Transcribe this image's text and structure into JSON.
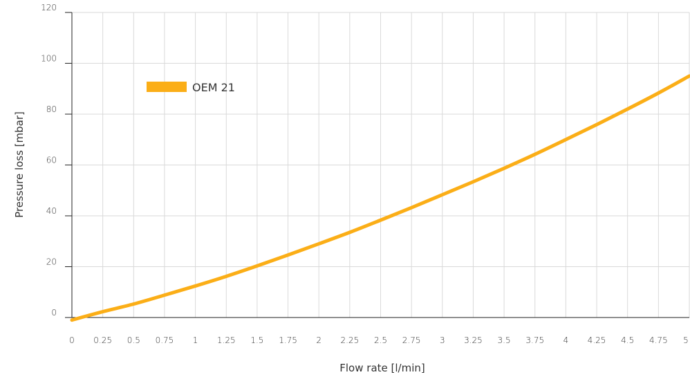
{
  "chart_data": {
    "type": "line",
    "title": "",
    "xlabel": "Flow rate [l/min]",
    "ylabel": "Pressure loss [mbar]",
    "xlim": [
      0,
      5
    ],
    "ylim": [
      0,
      120
    ],
    "x_ticks": [
      0,
      0.25,
      0.5,
      0.75,
      1,
      1.25,
      1.5,
      1.75,
      2,
      2.25,
      2.5,
      2.75,
      3,
      3.25,
      3.5,
      3.75,
      4,
      4.25,
      4.5,
      4.75,
      5
    ],
    "x_tick_labels": [
      "0",
      "0.25",
      "0.5",
      "0.75",
      "1",
      "1.25",
      "1.5",
      "1.75",
      "2",
      "2.25",
      "2.5",
      "2.75",
      "3",
      "3.25",
      "3.5",
      "3.75",
      "4",
      "4.25",
      "4.5",
      "4.75",
      "5"
    ],
    "y_ticks": [
      0,
      20,
      40,
      60,
      80,
      100,
      120
    ],
    "y_tick_labels": [
      "0",
      "20",
      "40",
      "60",
      "80",
      "100",
      "120"
    ],
    "grid": true,
    "legend_position": "top-left",
    "series": [
      {
        "name": "OEM 21",
        "color": "#FBAE17",
        "x": [
          0,
          0.25,
          0.5,
          0.75,
          1,
          1.25,
          1.5,
          1.75,
          2,
          2.25,
          2.5,
          2.75,
          3,
          3.25,
          3.5,
          3.75,
          4,
          4.25,
          4.5,
          4.75,
          5
        ],
        "y": [
          -1,
          2.3,
          5.3,
          8.8,
          12.4,
          16.2,
          20.3,
          24.6,
          29.0,
          33.5,
          38.3,
          43.2,
          48.3,
          53.4,
          58.7,
          64.2,
          70.0,
          75.9,
          82.0,
          88.3,
          95.0
        ]
      }
    ]
  }
}
